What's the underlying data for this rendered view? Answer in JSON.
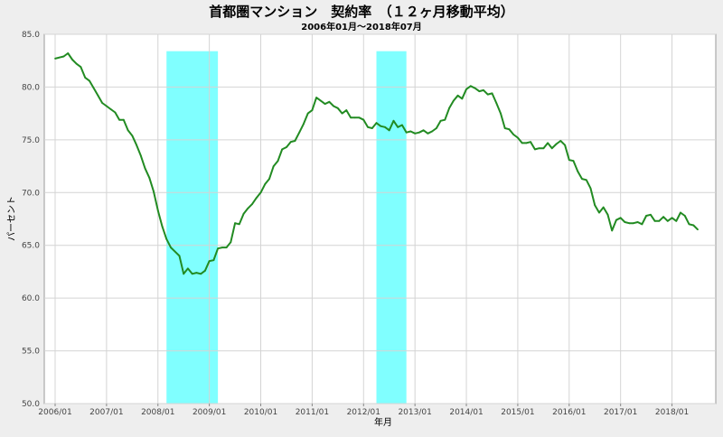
{
  "chart_data": {
    "type": "line",
    "title": "首都圏マンション　契約率　（１２ヶ月移動平均）",
    "subtitle": "2006年01月～2018年07月",
    "xlabel": "年月",
    "ylabel": "パーセント",
    "ylim": [
      50.0,
      85.0
    ],
    "y_ticks": [
      "50.0",
      "55.0",
      "60.0",
      "65.0",
      "70.0",
      "75.0",
      "80.0",
      "85.0"
    ],
    "x_ticks": [
      "2006/01",
      "2007/01",
      "2008/01",
      "2009/01",
      "2010/01",
      "2011/01",
      "2012/01",
      "2013/01",
      "2014/01",
      "2015/01",
      "2016/01",
      "2017/01",
      "2018/01"
    ],
    "grid": true,
    "x_start": "2006/01",
    "shaded_periods": [
      {
        "from": "2008/03",
        "to": "2009/03",
        "color": "#80ffff"
      },
      {
        "from": "2012/04",
        "to": "2012/11",
        "color": "#80ffff"
      }
    ],
    "series": [
      {
        "name": "",
        "color": "#228b22",
        "values": [
          82.7,
          82.8,
          82.9,
          83.2,
          82.6,
          82.2,
          81.9,
          80.9,
          80.6,
          79.9,
          79.2,
          78.5,
          78.2,
          77.9,
          77.6,
          76.9,
          76.9,
          75.9,
          75.4,
          74.5,
          73.5,
          72.3,
          71.4,
          70.1,
          68.3,
          66.8,
          65.6,
          64.8,
          64.4,
          64.0,
          62.3,
          62.8,
          62.3,
          62.4,
          62.3,
          62.6,
          63.5,
          63.6,
          64.7,
          64.8,
          64.8,
          65.3,
          67.1,
          67.0,
          68.0,
          68.5,
          68.9,
          69.5,
          70.0,
          70.8,
          71.3,
          72.5,
          73.0,
          74.1,
          74.3,
          74.8,
          74.9,
          75.7,
          76.5,
          77.5,
          77.8,
          79.0,
          78.7,
          78.4,
          78.6,
          78.2,
          78.0,
          77.5,
          77.8,
          77.1,
          77.1,
          77.1,
          76.9,
          76.2,
          76.1,
          76.6,
          76.3,
          76.2,
          75.9,
          76.8,
          76.2,
          76.4,
          75.7,
          75.8,
          75.6,
          75.7,
          75.9,
          75.6,
          75.8,
          76.1,
          76.8,
          76.9,
          78.0,
          78.7,
          79.2,
          78.9,
          79.8,
          80.1,
          79.9,
          79.6,
          79.7,
          79.3,
          79.4,
          78.5,
          77.5,
          76.1,
          76.0,
          75.5,
          75.2,
          74.7,
          74.7,
          74.8,
          74.1,
          74.2,
          74.2,
          74.7,
          74.2,
          74.6,
          74.9,
          74.5,
          73.1,
          73.0,
          72.0,
          71.3,
          71.2,
          70.4,
          68.8,
          68.1,
          68.6,
          67.9,
          66.4,
          67.4,
          67.6,
          67.2,
          67.1,
          67.1,
          67.2,
          67.0,
          67.8,
          67.9,
          67.3,
          67.3,
          67.7,
          67.3,
          67.6,
          67.3,
          68.1,
          67.8,
          67.0,
          66.9,
          66.5
        ]
      }
    ]
  }
}
